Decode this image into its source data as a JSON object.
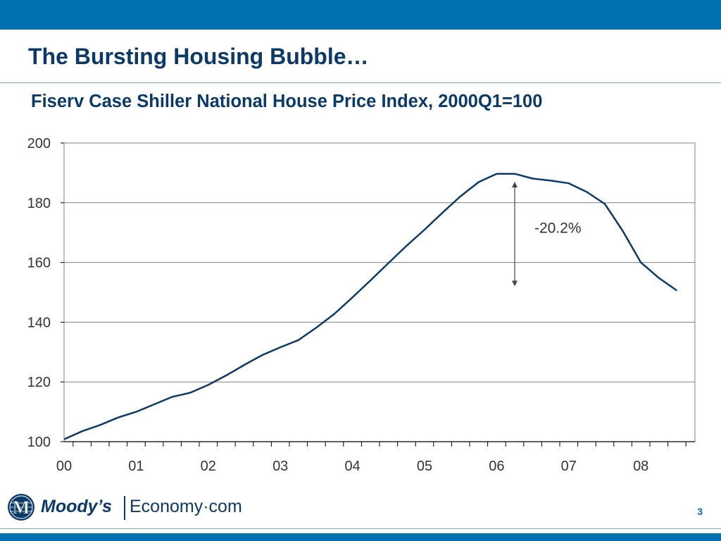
{
  "slide": {
    "title": "The Bursting Housing Bubble…",
    "page_number": "3"
  },
  "logo": {
    "brand": "Moody’s",
    "product": "Economy·com"
  },
  "colors": {
    "bar": "#0070ae",
    "title": "#0b3a68",
    "line": "#0b3a68",
    "grid": "#808080"
  },
  "chart_data": {
    "type": "line",
    "title": "Fiserv Case Shiller National House Price Index, 2000Q1=100",
    "xlabel": "",
    "ylabel": "",
    "ylim": [
      100,
      200
    ],
    "yticks": [
      100,
      120,
      140,
      160,
      180,
      200
    ],
    "grid": true,
    "legend": "none",
    "x_tick_labels": [
      "00",
      "01",
      "02",
      "03",
      "04",
      "05",
      "06",
      "07",
      "08"
    ],
    "x_quarter_range": [
      0,
      35
    ],
    "series": [
      {
        "name": "",
        "x": [
          "2000Q1",
          "2000Q2",
          "2000Q3",
          "2000Q4",
          "2001Q1",
          "2001Q2",
          "2001Q3",
          "2001Q4",
          "2002Q1",
          "2002Q2",
          "2002Q3",
          "2002Q4",
          "2003Q1",
          "2003Q2",
          "2003Q3",
          "2003Q4",
          "2004Q1",
          "2004Q2",
          "2004Q3",
          "2004Q4",
          "2005Q1",
          "2005Q2",
          "2005Q3",
          "2005Q4",
          "2006Q1",
          "2006Q2",
          "2006Q3",
          "2006Q4",
          "2007Q1",
          "2007Q2",
          "2007Q3",
          "2007Q4",
          "2008Q1",
          "2008Q2",
          "2008Q3"
        ],
        "values": [
          100.8,
          103.5,
          105.6,
          108.1,
          110.0,
          112.5,
          115.0,
          116.4,
          119.0,
          122.2,
          125.7,
          129.0,
          131.6,
          134.0,
          138.2,
          142.8,
          148.3,
          154.0,
          159.8,
          165.6,
          171.0,
          176.7,
          182.2,
          186.9,
          189.7,
          189.7,
          188.1,
          187.4,
          186.5,
          183.6,
          179.6,
          170.5,
          160.0,
          154.8,
          150.6
        ]
      }
    ],
    "annotation": {
      "text": "-20.2%",
      "x_quarter": 25,
      "y_from": 187,
      "y_to": 152
    }
  }
}
